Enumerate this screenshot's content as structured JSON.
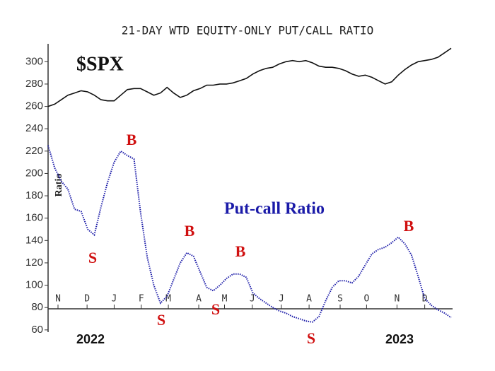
{
  "chart_data": {
    "type": "line",
    "title": "21-DAY WTD EQUITY-ONLY PUT/CALL RATIO",
    "ylabel": "Ratio",
    "x": [
      0,
      1,
      2,
      3,
      4,
      5,
      6,
      7,
      8,
      9,
      10,
      11,
      12,
      13,
      14,
      15,
      16,
      17,
      18,
      19,
      20,
      21,
      22,
      23,
      24,
      25,
      26,
      27,
      28,
      29,
      30,
      31,
      32,
      33,
      34,
      35,
      36,
      37,
      38,
      39,
      40,
      41,
      42,
      43,
      44,
      45,
      46,
      47,
      48,
      49,
      50,
      51,
      52,
      53,
      54,
      55,
      56,
      57,
      58,
      59,
      60,
      61
    ],
    "series": [
      {
        "name": "$SPX",
        "color": "#111111",
        "values": [
          260,
          262,
          266,
          270,
          272,
          274,
          273,
          270,
          266,
          265,
          265,
          270,
          275,
          276,
          276,
          273,
          270,
          272,
          277,
          272,
          268,
          270,
          274,
          276,
          279,
          279,
          280,
          280,
          281,
          283,
          285,
          289,
          292,
          294,
          295,
          298,
          300,
          301,
          300,
          301,
          299,
          296,
          295,
          295,
          294,
          292,
          289,
          287,
          288,
          286,
          283,
          280,
          282,
          288,
          293,
          297,
          300,
          301,
          302,
          304,
          308,
          312
        ]
      },
      {
        "name": "Put-call Ratio",
        "color": "#1a1aa8",
        "values": [
          225,
          205,
          193,
          186,
          168,
          166,
          150,
          145,
          170,
          192,
          210,
          220,
          216,
          213,
          165,
          125,
          100,
          84,
          90,
          105,
          120,
          129,
          126,
          112,
          98,
          95,
          100,
          106,
          110,
          110,
          107,
          93,
          88,
          84,
          80,
          77,
          75,
          72,
          70,
          68,
          67,
          72,
          86,
          98,
          104,
          104,
          102,
          108,
          118,
          128,
          132,
          134,
          138,
          143,
          137,
          127,
          108,
          88,
          82,
          78,
          75,
          71
        ]
      }
    ],
    "xlim": [
      0,
      61
    ],
    "xticks": [
      {
        "value": 1.5,
        "label": "N"
      },
      {
        "value": 5.9,
        "label": "D"
      },
      {
        "value": 10,
        "label": "J"
      },
      {
        "value": 14.1,
        "label": "F"
      },
      {
        "value": 18.2,
        "label": "M"
      },
      {
        "value": 22.8,
        "label": "A"
      },
      {
        "value": 26.7,
        "label": "M"
      },
      {
        "value": 30.9,
        "label": "J"
      },
      {
        "value": 35.3,
        "label": "J"
      },
      {
        "value": 39.5,
        "label": "A"
      },
      {
        "value": 44.2,
        "label": "S"
      },
      {
        "value": 48.2,
        "label": "O"
      },
      {
        "value": 52.8,
        "label": "N"
      },
      {
        "value": 57,
        "label": "D"
      }
    ],
    "x_group_labels": [
      "2022",
      "2023"
    ],
    "ylim": [
      58,
      316
    ],
    "yticks": [
      60,
      80,
      100,
      120,
      140,
      160,
      180,
      200,
      220,
      240,
      260,
      280,
      300
    ],
    "annotations": [
      "B",
      "S",
      "S",
      "B",
      "S",
      "B",
      "S",
      "B"
    ],
    "annotation_color": "#d01010"
  }
}
